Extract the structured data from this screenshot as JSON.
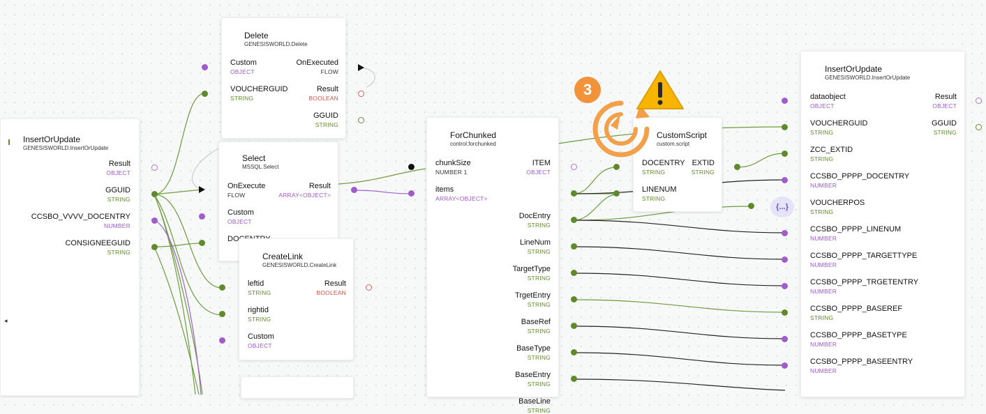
{
  "nodes": {
    "insert_left": {
      "title": "InsertOrUpdate",
      "subtitle": "GENESISWORLD.InsertOrUpdate",
      "result_label": "Result",
      "result_type": "OBJECT",
      "gguid_label": "GGUID",
      "gguid_type": "STRING",
      "docentry_label": "CCSBO_VVVV_DOCENTRY",
      "docentry_type": "NUMBER",
      "consignee_label": "CONSIGNEEGUID",
      "consignee_type": "STRING"
    },
    "delete": {
      "title": "Delete",
      "subtitle": "GENESISWORLD.Delete",
      "custom_label": "Custom",
      "custom_type": "OBJECT",
      "onexecuted_label": "OnExecuted",
      "onexecuted_type": "FLOW",
      "voucherguid_label": "VOUCHERGUID",
      "voucherguid_type": "STRING",
      "result_label": "Result",
      "result_type": "BOOLEAN",
      "gguid_label": "GGUID",
      "gguid_type": "STRING"
    },
    "select": {
      "title": "Select",
      "subtitle": "MSSQL.Select",
      "onexecute_label": "OnExecute",
      "onexecute_type": "FLOW",
      "result_label": "Result",
      "result_type": "ARRAY<OBJECT>",
      "custom_label": "Custom",
      "custom_type": "OBJECT",
      "docentry_label": "DOCENTRY"
    },
    "createlink": {
      "title": "CreateLink",
      "subtitle": "GENESISWORLD.CreateLink",
      "leftid_label": "leftid",
      "leftid_type": "STRING",
      "result_label": "Result",
      "result_type": "BOOLEAN",
      "rightid_label": "rightid",
      "rightid_type": "STRING",
      "custom_label": "Custom",
      "custom_type": "OBJECT"
    },
    "forchunked": {
      "title": "ForChunked",
      "subtitle": "control.forchunked",
      "chunksize_label": "chunkSize",
      "chunksize_type": "NUMBER 1",
      "item_label": "ITEM",
      "item_type": "OBJECT",
      "items_label": "items",
      "items_type": "ARRAY<OBJECT>",
      "outputs": [
        {
          "label": "DocEntry",
          "type": "STRING"
        },
        {
          "label": "LineNum",
          "type": "STRING"
        },
        {
          "label": "TargetType",
          "type": "STRING"
        },
        {
          "label": "TrgetEntry",
          "type": "STRING"
        },
        {
          "label": "BaseRef",
          "type": "STRING"
        },
        {
          "label": "BaseType",
          "type": "STRING"
        },
        {
          "label": "BaseEntry",
          "type": "STRING"
        },
        {
          "label": "BaseLine",
          "type": "STRING"
        }
      ]
    },
    "customscript": {
      "title": "CustomScript",
      "subtitle": "custom.script",
      "docentry_label": "DOCENTRY",
      "docentry_type": "STRING",
      "extid_label": "EXTID",
      "extid_type": "STRING",
      "linenum_label": "LINENUM",
      "linenum_type": "STRING"
    },
    "insert_right": {
      "title": "InsertOrUpdate",
      "subtitle": "GENESISWORLD.InsertOrUpdate",
      "result_label": "Result",
      "result_type": "OBJECT",
      "gguid_label": "GGUID",
      "gguid_type": "STRING",
      "inputs": [
        {
          "label": "dataobject",
          "type": "OBJECT"
        },
        {
          "label": "VOUCHERGUID",
          "type": "STRING"
        },
        {
          "label": "ZCC_EXTID",
          "type": "STRING"
        },
        {
          "label": "CCSBO_PPPP_DOCENTRY",
          "type": "NUMBER"
        },
        {
          "label": "VOUCHERPOS",
          "type": "STRING"
        },
        {
          "label": "CCSBO_PPPP_LINENUM",
          "type": "NUMBER"
        },
        {
          "label": "CCSBO_PPPP_TARGETTYPE",
          "type": "NUMBER"
        },
        {
          "label": "CCSBO_PPPP_TRGETENTRY",
          "type": "NUMBER"
        },
        {
          "label": "CCSBO_PPPP_BASEREF",
          "type": "STRING"
        },
        {
          "label": "CCSBO_PPPP_BASETYPE",
          "type": "NUMBER"
        },
        {
          "label": "CCSBO_PPPP_BASEENTRY",
          "type": "NUMBER"
        }
      ]
    }
  },
  "badge": {
    "count": "3"
  },
  "json_chip": {
    "label": "{...}"
  },
  "icons": {
    "warning": "warning-icon",
    "refresh": "refresh-icon",
    "flow": "flow-arrow-icon"
  },
  "colors": {
    "string": "#5f8a2b",
    "object": "#9b5bc4",
    "boolean": "#d0524a",
    "badge": "#f0933a",
    "warning": "#f5b800"
  }
}
